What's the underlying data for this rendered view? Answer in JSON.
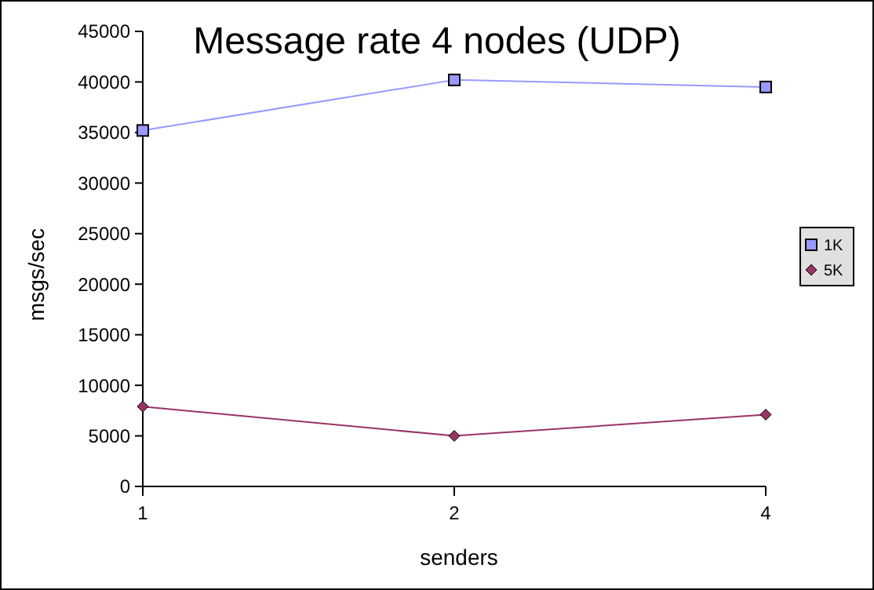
{
  "chart_data": {
    "type": "line",
    "title": "Message rate 4 nodes (UDP)",
    "xlabel": "senders",
    "ylabel": "msgs/sec",
    "categories": [
      "1",
      "2",
      "4"
    ],
    "series": [
      {
        "name": "1K",
        "color": "#9999ff",
        "marker": "square",
        "values": [
          35200,
          40200,
          39500
        ]
      },
      {
        "name": "5K",
        "color": "#993366",
        "marker": "diamond",
        "values": [
          7900,
          5000,
          7100
        ]
      }
    ],
    "ylim": [
      0,
      45000
    ],
    "yticks": [
      0,
      5000,
      10000,
      15000,
      20000,
      25000,
      30000,
      35000,
      40000,
      45000
    ],
    "grid": false,
    "legend": "right"
  }
}
